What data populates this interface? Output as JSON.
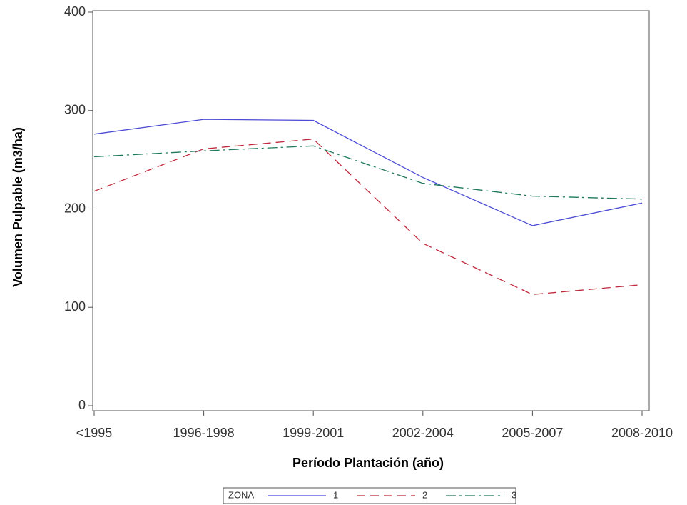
{
  "chart_data": {
    "type": "line",
    "x_label": "Período Plantación (año)",
    "y_label": "Volumen Pulpable (m3/ha)",
    "categories": [
      "<1995",
      "1996-1998",
      "1999-2001",
      "2002-2004",
      "2005-2007",
      "2008-2010"
    ],
    "legend_title": "ZONA",
    "legend_position": "bottom",
    "series": [
      {
        "name": "1",
        "color": "#4b4bd6",
        "dash": "solid",
        "values": [
          276,
          291,
          290,
          232,
          183,
          206
        ]
      },
      {
        "name": "2",
        "color": "#c0283c",
        "dash": "dash",
        "values": [
          218,
          261,
          271,
          165,
          113,
          123
        ]
      },
      {
        "name": "3",
        "color": "#1f7a5a",
        "dash": "dashdot",
        "values": [
          253,
          259,
          264,
          226,
          213,
          210
        ]
      }
    ],
    "ylim": [
      0,
      400
    ],
    "yticks": [
      0,
      100,
      200,
      300,
      400
    ],
    "grid": false
  }
}
